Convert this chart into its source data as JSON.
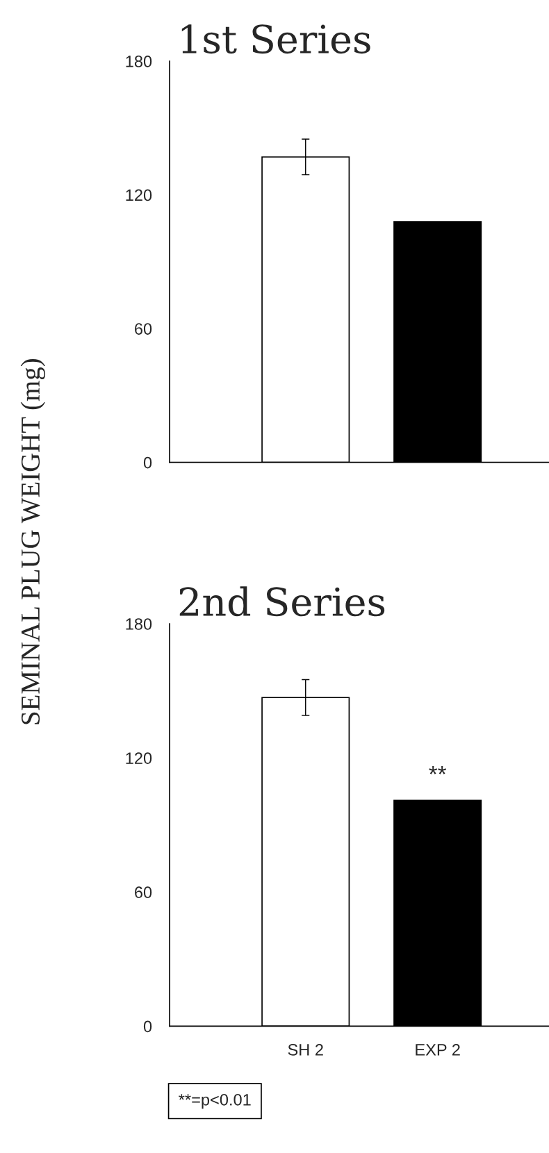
{
  "chart_data": [
    {
      "type": "bar",
      "title": "1st Series",
      "ylabel": "SEMINAL PLUG WEIGHT (mg)",
      "categories": [
        null,
        null
      ],
      "series": [
        {
          "colors": [
            "#ffffff",
            "#000000"
          ],
          "values": [
            137,
            108
          ],
          "errors": [
            8,
            null
          ]
        }
      ],
      "ylim": [
        0,
        180
      ],
      "yticks": [
        0,
        60,
        120,
        180
      ],
      "tick_labels": "y",
      "grid": false,
      "legend": false
    },
    {
      "type": "bar",
      "title": "2nd Series",
      "categories": [
        "SH 2",
        "EXP 2"
      ],
      "series": [
        {
          "colors": [
            "#ffffff",
            "#000000"
          ],
          "values": [
            147,
            101
          ],
          "errors": [
            8,
            null
          ]
        }
      ],
      "ylim": [
        0,
        180
      ],
      "yticks": [
        0,
        60,
        120,
        180
      ],
      "grid": false,
      "legend": false,
      "annotations": [
        {
          "text": "**",
          "x": "EXP 2",
          "y": 101
        },
        "**=p<0.01"
      ]
    }
  ]
}
